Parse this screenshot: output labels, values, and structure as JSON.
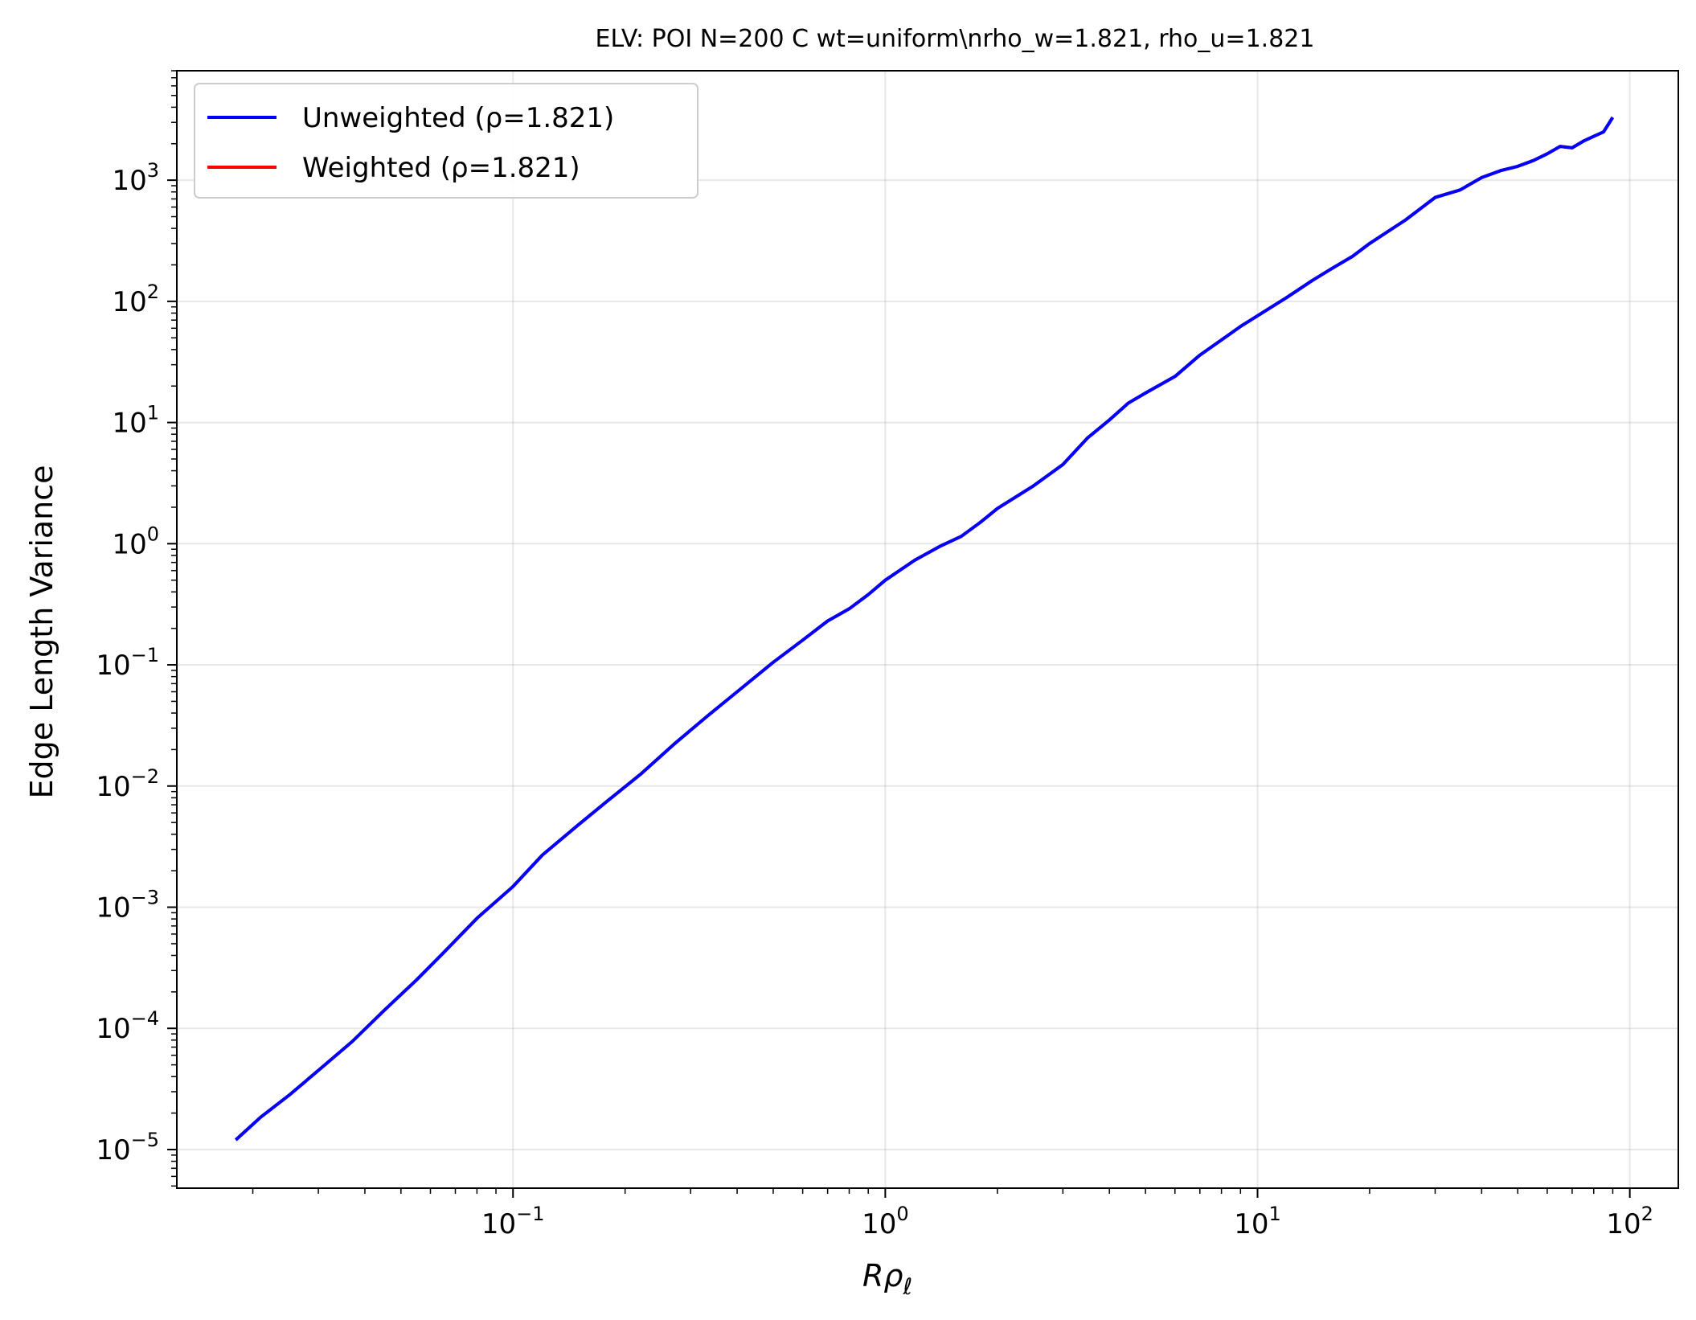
{
  "chart_data": {
    "type": "line",
    "title": "ELV: POI N=200 C wt=uniform\\nrho_w=1.821, rho_u=1.821",
    "xlabel": "Rρℓ",
    "ylabel": "Edge Length Variance",
    "xscale": "log",
    "yscale": "log",
    "xlim": [
      0.0125,
      135
    ],
    "ylim": [
      4.8e-06,
      8000
    ],
    "grid": true,
    "legend_position": "top-left",
    "x_ticks": [
      {
        "value": 0.1,
        "base": "10",
        "exp": "−1"
      },
      {
        "value": 1,
        "base": "10",
        "exp": "0"
      },
      {
        "value": 10,
        "base": "10",
        "exp": "1"
      },
      {
        "value": 100,
        "base": "10",
        "exp": "2"
      }
    ],
    "y_ticks": [
      {
        "value": 1e-05,
        "base": "10",
        "exp": "−5"
      },
      {
        "value": 0.0001,
        "base": "10",
        "exp": "−4"
      },
      {
        "value": 0.001,
        "base": "10",
        "exp": "−3"
      },
      {
        "value": 0.01,
        "base": "10",
        "exp": "−2"
      },
      {
        "value": 0.1,
        "base": "10",
        "exp": "−1"
      },
      {
        "value": 1,
        "base": "10",
        "exp": "0"
      },
      {
        "value": 10,
        "base": "10",
        "exp": "1"
      },
      {
        "value": 100,
        "base": "10",
        "exp": "2"
      },
      {
        "value": 1000,
        "base": "10",
        "exp": "3"
      }
    ],
    "series": [
      {
        "name": "Unweighted (ρ=1.821)",
        "color": "#0000ff",
        "x": [
          0.018,
          0.021,
          0.025,
          0.03,
          0.037,
          0.045,
          0.055,
          0.065,
          0.08,
          0.1,
          0.12,
          0.15,
          0.18,
          0.22,
          0.27,
          0.33,
          0.4,
          0.5,
          0.6,
          0.7,
          0.8,
          0.9,
          1.0,
          1.2,
          1.4,
          1.6,
          1.8,
          2.0,
          2.5,
          3.0,
          3.5,
          4.0,
          4.5,
          5.0,
          6.0,
          7.0,
          8.0,
          9.0,
          10,
          12,
          14,
          16,
          18,
          20,
          25,
          30,
          35,
          40,
          45,
          50,
          55,
          60,
          65,
          70,
          75,
          80,
          85,
          90
        ],
        "values": [
          1.2e-05,
          1.85e-05,
          2.8e-05,
          4.5e-05,
          7.8e-05,
          0.00014,
          0.00025,
          0.00042,
          0.00081,
          0.00148,
          0.0027,
          0.0048,
          0.0076,
          0.0125,
          0.022,
          0.037,
          0.06,
          0.105,
          0.16,
          0.23,
          0.29,
          0.38,
          0.5,
          0.73,
          0.95,
          1.15,
          1.5,
          1.95,
          3.0,
          4.5,
          7.5,
          10.5,
          14.5,
          17.5,
          24,
          36,
          48,
          62,
          76,
          108,
          148,
          190,
          235,
          300,
          470,
          720,
          830,
          1050,
          1200,
          1300,
          1450,
          1650,
          1900,
          1850,
          2100,
          2300,
          2500,
          3300
        ]
      },
      {
        "name": "Weighted (ρ=1.821)",
        "color": "#ff0000",
        "x": [
          0.018,
          0.021,
          0.025,
          0.03,
          0.037,
          0.045,
          0.055,
          0.065,
          0.08,
          0.1,
          0.12,
          0.15,
          0.18,
          0.22,
          0.27,
          0.33,
          0.4,
          0.5,
          0.6,
          0.7,
          0.8,
          0.9,
          1.0,
          1.2,
          1.4,
          1.6,
          1.8,
          2.0,
          2.5,
          3.0,
          3.5,
          4.0,
          4.5,
          5.0,
          6.0,
          7.0,
          8.0,
          9.0,
          10,
          12,
          14,
          16,
          18,
          20,
          25,
          30,
          35,
          40,
          45,
          50,
          55,
          60,
          65,
          70,
          75,
          80,
          85,
          90
        ],
        "values": [
          1.2e-05,
          1.85e-05,
          2.8e-05,
          4.5e-05,
          7.8e-05,
          0.00014,
          0.00025,
          0.00042,
          0.00081,
          0.00148,
          0.0027,
          0.0048,
          0.0076,
          0.0125,
          0.022,
          0.037,
          0.06,
          0.105,
          0.16,
          0.23,
          0.29,
          0.38,
          0.5,
          0.73,
          0.95,
          1.15,
          1.5,
          1.95,
          3.0,
          4.5,
          7.5,
          10.5,
          14.5,
          17.5,
          24,
          36,
          48,
          62,
          76,
          108,
          148,
          190,
          235,
          300,
          470,
          720,
          830,
          1050,
          1200,
          1300,
          1450,
          1650,
          1900,
          1850,
          2100,
          2300,
          2500,
          3300
        ]
      }
    ]
  }
}
